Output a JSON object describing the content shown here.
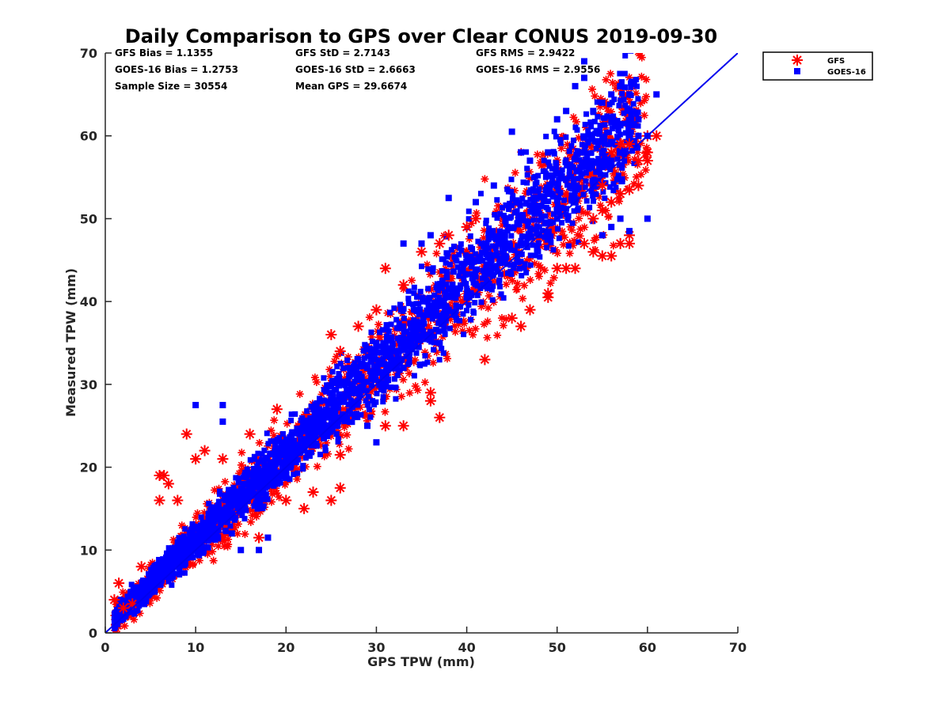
{
  "chart_data": {
    "type": "scatter",
    "title": "Daily Comparison to GPS over Clear CONUS 2019-09-30",
    "xlabel": "GPS TPW (mm)",
    "ylabel": "Measured TPW (mm)",
    "xlim": [
      0,
      70
    ],
    "ylim": [
      0,
      70
    ],
    "xticks": [
      "0",
      "10",
      "20",
      "30",
      "40",
      "50",
      "60",
      "70"
    ],
    "yticks": [
      "0",
      "10",
      "20",
      "30",
      "40",
      "50",
      "60",
      "70"
    ],
    "grid": false,
    "legend_position": "outside top-right",
    "reference_line": {
      "name": "1:1 line",
      "x": [
        0,
        70
      ],
      "y": [
        0,
        70
      ],
      "color": "#0000ee"
    },
    "statistics": [
      {
        "id": "gfs_bias",
        "text": "GFS Bias = 1.1355"
      },
      {
        "id": "gfs_std",
        "text": "GFS StD = 2.7143"
      },
      {
        "id": "gfs_rms",
        "text": "GFS RMS = 2.9422"
      },
      {
        "id": "goes_bias",
        "text": "GOES-16 Bias = 1.2753"
      },
      {
        "id": "goes_std",
        "text": "GOES-16 StD = 2.6663"
      },
      {
        "id": "goes_rms",
        "text": "GOES-16 RMS = 2.9556"
      },
      {
        "id": "sample_size",
        "text": "Sample Size = 30554"
      },
      {
        "id": "mean_gps",
        "text": "Mean GPS = 29.6674"
      }
    ],
    "series": [
      {
        "name": "GFS",
        "marker": "asterisk",
        "color": "#ff0000",
        "points": [
          [
            1,
            4
          ],
          [
            1.5,
            6
          ],
          [
            2,
            3
          ],
          [
            3,
            3.5
          ],
          [
            4,
            8
          ],
          [
            6,
            19
          ],
          [
            6.5,
            19
          ],
          [
            7,
            18
          ],
          [
            6,
            16
          ],
          [
            8,
            16
          ],
          [
            9,
            24
          ],
          [
            10,
            21
          ],
          [
            11,
            22
          ],
          [
            13,
            21
          ],
          [
            16,
            24
          ],
          [
            17,
            11.5
          ],
          [
            19,
            27
          ],
          [
            20,
            16
          ],
          [
            22,
            15
          ],
          [
            23,
            17
          ],
          [
            25,
            16
          ],
          [
            26,
            21.5
          ],
          [
            26,
            17.5
          ],
          [
            25,
            36
          ],
          [
            26,
            34
          ],
          [
            28,
            37
          ],
          [
            30,
            39
          ],
          [
            31,
            44
          ],
          [
            33,
            42
          ],
          [
            35,
            46
          ],
          [
            37,
            47
          ],
          [
            38,
            48
          ],
          [
            40,
            49
          ],
          [
            41,
            50
          ],
          [
            42,
            33
          ],
          [
            36,
            29
          ],
          [
            36,
            28
          ],
          [
            37,
            26
          ],
          [
            31,
            25
          ],
          [
            33,
            25
          ],
          [
            46,
            37
          ],
          [
            45,
            38
          ],
          [
            47,
            39
          ],
          [
            49,
            40.5
          ],
          [
            49,
            41
          ],
          [
            50,
            44
          ],
          [
            51,
            44
          ],
          [
            52,
            44
          ],
          [
            53,
            47
          ],
          [
            54,
            46
          ],
          [
            55,
            45.5
          ],
          [
            56,
            45.5
          ],
          [
            57,
            47
          ],
          [
            58,
            47
          ],
          [
            58,
            48
          ],
          [
            54,
            50
          ],
          [
            55,
            51
          ],
          [
            56,
            52
          ],
          [
            57,
            53
          ],
          [
            58,
            53.5
          ],
          [
            59,
            54
          ],
          [
            59,
            57
          ],
          [
            60,
            57
          ],
          [
            60,
            58
          ],
          [
            60,
            60
          ],
          [
            61,
            60
          ],
          [
            57,
            59
          ],
          [
            58,
            59
          ],
          [
            56,
            58
          ],
          [
            55,
            54
          ]
        ]
      },
      {
        "name": "GOES-16",
        "marker": "square",
        "color": "#0000ff",
        "points": [
          [
            10,
            27.5
          ],
          [
            13,
            27.5
          ],
          [
            13,
            25.5
          ],
          [
            33,
            47
          ],
          [
            35,
            47
          ],
          [
            36,
            48
          ],
          [
            38,
            52.5
          ],
          [
            41,
            52
          ],
          [
            43,
            54
          ],
          [
            45,
            60.5
          ],
          [
            46,
            58
          ],
          [
            47,
            57
          ],
          [
            49,
            58
          ],
          [
            50,
            62
          ],
          [
            51,
            63
          ],
          [
            52,
            66
          ],
          [
            53,
            67
          ],
          [
            53,
            69
          ],
          [
            54,
            63
          ],
          [
            55,
            64
          ],
          [
            56,
            65
          ],
          [
            57,
            66
          ],
          [
            58,
            65
          ],
          [
            59,
            62
          ],
          [
            60,
            60
          ],
          [
            61,
            65
          ],
          [
            55,
            58
          ],
          [
            56,
            57
          ],
          [
            57,
            58
          ],
          [
            59,
            60
          ],
          [
            56,
            49
          ],
          [
            57,
            50
          ],
          [
            58,
            48.5
          ],
          [
            60,
            50
          ],
          [
            55,
            48
          ],
          [
            28,
            28
          ],
          [
            29,
            25
          ],
          [
            30,
            23
          ],
          [
            24,
            24
          ],
          [
            18,
            11.5
          ],
          [
            17,
            10
          ],
          [
            15,
            10
          ],
          [
            14,
            12
          ],
          [
            40,
            40.5
          ],
          [
            42,
            43
          ],
          [
            44,
            46
          ],
          [
            46,
            47
          ],
          [
            48,
            48
          ],
          [
            50,
            50
          ],
          [
            52,
            52
          ],
          [
            54,
            54
          ],
          [
            35,
            37
          ],
          [
            36,
            36
          ],
          [
            37,
            35
          ],
          [
            38,
            39
          ],
          [
            32,
            34
          ],
          [
            33,
            32
          ],
          [
            34,
            36
          ],
          [
            26,
            30
          ],
          [
            27,
            31
          ],
          [
            28,
            33
          ],
          [
            29,
            32
          ],
          [
            30,
            35
          ]
        ]
      }
    ],
    "cloud_description_note": "Dense overlapping clouds of both series along the 1:1 line from 1 to 60 mm"
  },
  "legend": {
    "items": [
      {
        "label": "GFS",
        "marker": "asterisk",
        "color": "#ff0000"
      },
      {
        "label": "GOES-16",
        "marker": "square",
        "color": "#0000ff"
      }
    ]
  }
}
